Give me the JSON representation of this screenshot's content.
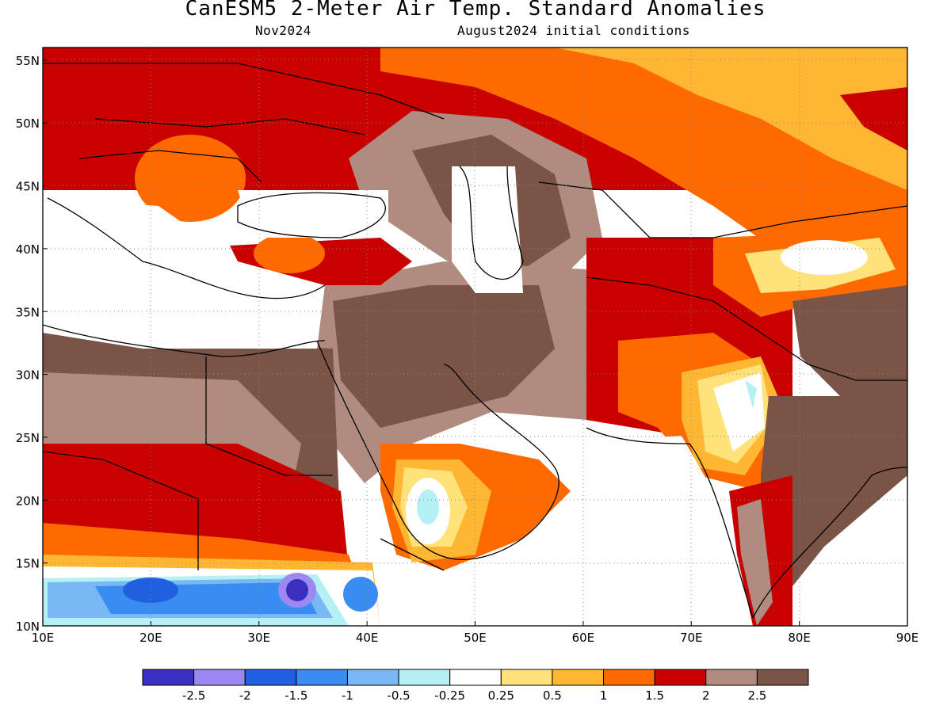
{
  "header": {
    "title": "CanESM5 2-Meter Air Temp. Standard Anomalies",
    "valid": "Nov2024",
    "init": "August2024 initial conditions"
  },
  "map": {
    "lon_range": [
      10,
      90
    ],
    "lat_range": [
      10,
      56
    ],
    "lon_ticks": [
      "10E",
      "20E",
      "30E",
      "40E",
      "50E",
      "60E",
      "70E",
      "80E",
      "90E"
    ],
    "lat_ticks": [
      "10N",
      "15N",
      "20N",
      "25N",
      "30N",
      "35N",
      "40N",
      "45N",
      "50N",
      "55N"
    ],
    "grid": "dotted"
  },
  "colorbar": {
    "colors": [
      "#3b2fbf",
      "#9b88f0",
      "#2060e0",
      "#3a8df0",
      "#7ab8f5",
      "#b4f0f4",
      "#ffffff",
      "#ffe27a",
      "#ffb733",
      "#ff6a00",
      "#c80000",
      "#b08b80",
      "#7a5446"
    ],
    "labels": [
      "-2.5",
      "-2",
      "-1.5",
      "-1",
      "-0.5",
      "-0.25",
      "0.25",
      "0.5",
      "1",
      "1.5",
      "2",
      "2.5"
    ]
  }
}
